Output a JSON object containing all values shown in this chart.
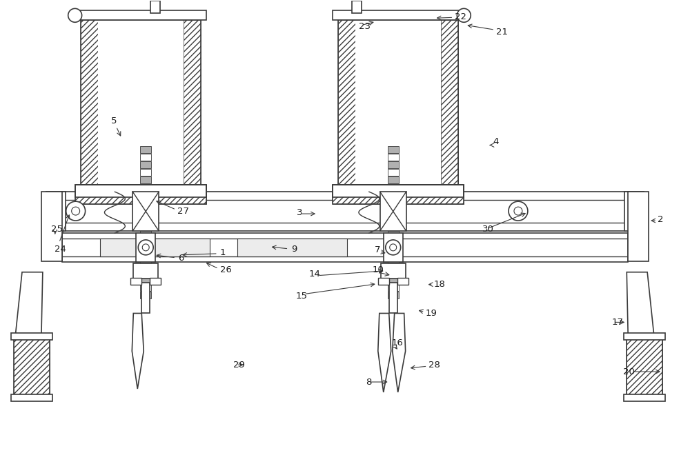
{
  "bg_color": "#ffffff",
  "line_color": "#3a3a3a",
  "label_color": "#1a1a1a",
  "fig_width": 10.0,
  "fig_height": 6.6,
  "dpi": 100
}
